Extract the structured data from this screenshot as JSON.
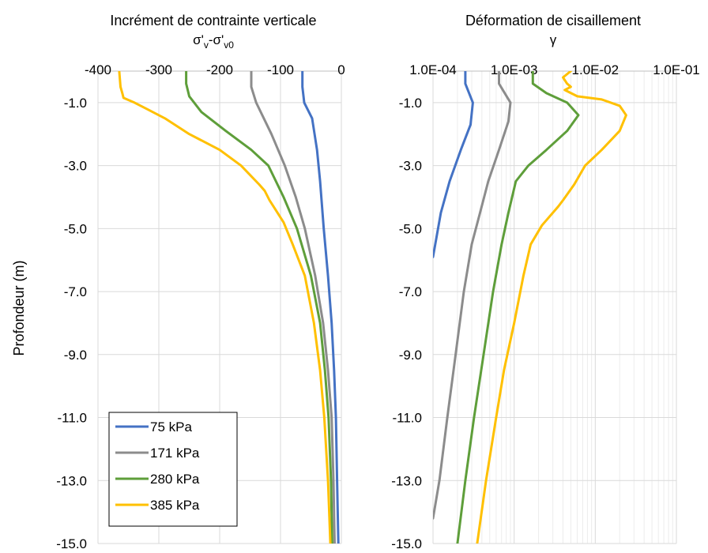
{
  "chart_data": [
    {
      "type": "line",
      "title": "Incrément de contrainte verticale",
      "subtitle_parts": [
        "σ'",
        "v",
        "-σ'",
        "v0"
      ],
      "xlabel": "σ'v-σ'v0",
      "ylabel": "Profondeur (m)",
      "x_axis_position": "top",
      "xlim": [
        -400,
        0
      ],
      "ylim": [
        -15,
        0
      ],
      "xticks": [
        -400,
        -300,
        -200,
        -100,
        0
      ],
      "xtick_labels": [
        "-400",
        "-300",
        "-200",
        "-100",
        "0"
      ],
      "yticks": [
        -1,
        -3,
        -5,
        -7,
        -9,
        -11,
        -13,
        -15
      ],
      "ytick_labels": [
        "-1.0",
        "-3.0",
        "-5.0",
        "-7.0",
        "-9.0",
        "-11.0",
        "-13.0",
        "-15.0"
      ],
      "grid": true,
      "legend_position": "bottom-left",
      "series": [
        {
          "name": "75 kPa",
          "color": "#4472C4",
          "points": [
            [
              -64,
              0
            ],
            [
              -64,
              -0.5
            ],
            [
              -61,
              -1.0
            ],
            [
              -48,
              -1.5
            ],
            [
              -40,
              -2.5
            ],
            [
              -35,
              -3.5
            ],
            [
              -29,
              -5.0
            ],
            [
              -22,
              -6.5
            ],
            [
              -16,
              -8.0
            ],
            [
              -12,
              -9.5
            ],
            [
              -9,
              -11.0
            ],
            [
              -7,
              -13.0
            ],
            [
              -5,
              -15.0
            ]
          ]
        },
        {
          "name": "171 kPa",
          "color": "#8C8C8C",
          "points": [
            [
              -148,
              0
            ],
            [
              -148,
              -0.5
            ],
            [
              -140,
              -1.0
            ],
            [
              -115,
              -2.0
            ],
            [
              -93,
              -3.0
            ],
            [
              -75,
              -4.0
            ],
            [
              -60,
              -5.0
            ],
            [
              -43,
              -6.5
            ],
            [
              -30,
              -8.0
            ],
            [
              -22,
              -9.5
            ],
            [
              -16,
              -11.0
            ],
            [
              -13,
              -13.0
            ],
            [
              -11,
              -15.0
            ]
          ]
        },
        {
          "name": "280 kPa",
          "color": "#5E9E3A",
          "points": [
            [
              -255,
              0
            ],
            [
              -255,
              -0.4
            ],
            [
              -250,
              -0.8
            ],
            [
              -230,
              -1.3
            ],
            [
              -190,
              -1.9
            ],
            [
              -148,
              -2.5
            ],
            [
              -120,
              -3.0
            ],
            [
              -95,
              -4.0
            ],
            [
              -73,
              -5.0
            ],
            [
              -50,
              -6.5
            ],
            [
              -35,
              -8.0
            ],
            [
              -27,
              -9.5
            ],
            [
              -21,
              -11.0
            ],
            [
              -17,
              -13.0
            ],
            [
              -15,
              -15.0
            ]
          ]
        },
        {
          "name": "385 kPa",
          "color": "#FFC000",
          "points": [
            [
              -365,
              0
            ],
            [
              -363,
              -0.5
            ],
            [
              -360,
              -0.7
            ],
            [
              -358,
              -0.85
            ],
            [
              -340,
              -1.0
            ],
            [
              -320,
              -1.2
            ],
            [
              -290,
              -1.5
            ],
            [
              -250,
              -2.0
            ],
            [
              -200,
              -2.5
            ],
            [
              -165,
              -3.0
            ],
            [
              -135,
              -3.6
            ],
            [
              -126,
              -3.8
            ],
            [
              -118,
              -4.1
            ],
            [
              -95,
              -4.8
            ],
            [
              -80,
              -5.5
            ],
            [
              -60,
              -6.5
            ],
            [
              -45,
              -8.0
            ],
            [
              -35,
              -9.5
            ],
            [
              -28,
              -11.0
            ],
            [
              -22,
              -13.0
            ],
            [
              -18,
              -15.0
            ]
          ]
        }
      ]
    },
    {
      "type": "line",
      "title": "Déformation de cisaillement",
      "subtitle_parts": [
        "γ"
      ],
      "xlabel": "γ",
      "x_axis_position": "top",
      "x_scale": "log",
      "xlim": [
        0.0001,
        0.1
      ],
      "ylim": [
        -15,
        0
      ],
      "xticks": [
        0.0001,
        0.001,
        0.01,
        0.1
      ],
      "xtick_labels": [
        "1.0E-04",
        "1.0E-03",
        "1.0E-02",
        "1.0E-01"
      ],
      "yticks": [
        -1,
        -3,
        -5,
        -7,
        -9,
        -11,
        -13,
        -15
      ],
      "ytick_labels": [
        "-1.0",
        "-3.0",
        "-5.0",
        "-7.0",
        "-9.0",
        "-11.0",
        "-13.0",
        "-15.0"
      ],
      "grid": true,
      "series": [
        {
          "name": "75 kPa",
          "color": "#4472C4",
          "points": [
            [
              0.00025,
              0
            ],
            [
              0.00025,
              -0.4
            ],
            [
              0.00031,
              -1.0
            ],
            [
              0.00029,
              -1.7
            ],
            [
              0.00022,
              -2.5
            ],
            [
              0.00016,
              -3.5
            ],
            [
              0.000125,
              -4.5
            ],
            [
              0.0001,
              -5.9
            ]
          ]
        },
        {
          "name": "171 kPa",
          "color": "#8C8C8C",
          "points": [
            [
              0.00065,
              0
            ],
            [
              0.00065,
              -0.4
            ],
            [
              0.0009,
              -1.0
            ],
            [
              0.00085,
              -1.6
            ],
            [
              0.00065,
              -2.5
            ],
            [
              0.00048,
              -3.5
            ],
            [
              0.00038,
              -4.5
            ],
            [
              0.0003,
              -5.5
            ],
            [
              0.00024,
              -7.0
            ],
            [
              0.00019,
              -9.0
            ],
            [
              0.00015,
              -11.0
            ],
            [
              0.00012,
              -13.0
            ],
            [
              0.0001,
              -14.2
            ]
          ]
        },
        {
          "name": "280 kPa",
          "color": "#5E9E3A",
          "points": [
            [
              0.0017,
              0
            ],
            [
              0.0017,
              -0.4
            ],
            [
              0.0025,
              -0.7
            ],
            [
              0.0045,
              -1.0
            ],
            [
              0.0062,
              -1.4
            ],
            [
              0.0045,
              -1.9
            ],
            [
              0.0025,
              -2.5
            ],
            [
              0.0015,
              -3.0
            ],
            [
              0.00105,
              -3.5
            ],
            [
              0.00085,
              -4.5
            ],
            [
              0.0007,
              -5.5
            ],
            [
              0.00055,
              -7.0
            ],
            [
              0.00042,
              -9.0
            ],
            [
              0.00032,
              -11.0
            ],
            [
              0.00025,
              -13.0
            ],
            [
              0.0002,
              -15.0
            ]
          ]
        },
        {
          "name": "385 kPa",
          "color": "#FFC000",
          "points": [
            [
              0.005,
              0
            ],
            [
              0.004,
              -0.2
            ],
            [
              0.0045,
              -0.4
            ],
            [
              0.005,
              -0.5
            ],
            [
              0.0042,
              -0.6
            ],
            [
              0.006,
              -0.8
            ],
            [
              0.012,
              -0.9
            ],
            [
              0.02,
              -1.1
            ],
            [
              0.024,
              -1.4
            ],
            [
              0.02,
              -1.9
            ],
            [
              0.012,
              -2.5
            ],
            [
              0.0075,
              -3.0
            ],
            [
              0.0055,
              -3.6
            ],
            [
              0.004,
              -4.1
            ],
            [
              0.0035,
              -4.3
            ],
            [
              0.0022,
              -4.9
            ],
            [
              0.0016,
              -5.5
            ],
            [
              0.0013,
              -6.5
            ],
            [
              0.001,
              -8.0
            ],
            [
              0.00075,
              -9.5
            ],
            [
              0.0006,
              -11.0
            ],
            [
              0.00045,
              -13.0
            ],
            [
              0.00035,
              -15.0
            ]
          ]
        }
      ]
    }
  ]
}
